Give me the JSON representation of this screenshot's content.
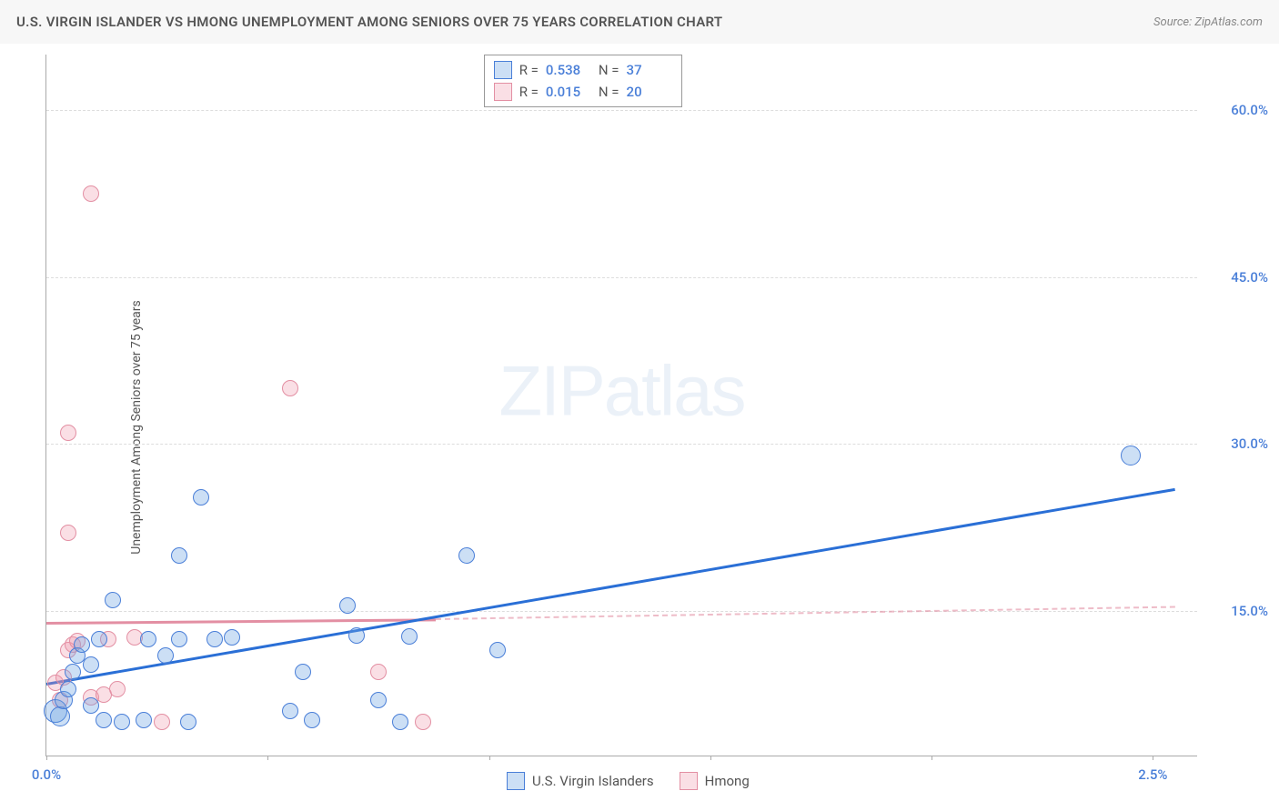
{
  "header": {
    "title": "U.S. VIRGIN ISLANDER VS HMONG UNEMPLOYMENT AMONG SENIORS OVER 75 YEARS CORRELATION CHART",
    "source": "Source: ZipAtlas.com"
  },
  "chart": {
    "type": "scatter",
    "ylabel": "Unemployment Among Seniors over 75 years",
    "watermark": "ZIPatlas",
    "xlim": [
      0.0,
      2.6
    ],
    "ylim": [
      2.0,
      65.0
    ],
    "yticks": [
      {
        "v": 15.0,
        "label": "15.0%"
      },
      {
        "v": 30.0,
        "label": "30.0%"
      },
      {
        "v": 45.0,
        "label": "45.0%"
      },
      {
        "v": 60.0,
        "label": "60.0%"
      }
    ],
    "xticks": [
      {
        "v": 0.0,
        "label": "0.0%"
      },
      {
        "v": 0.5,
        "label": ""
      },
      {
        "v": 1.0,
        "label": ""
      },
      {
        "v": 1.5,
        "label": ""
      },
      {
        "v": 2.0,
        "label": ""
      },
      {
        "v": 2.5,
        "label": "2.5%"
      }
    ],
    "colors": {
      "blue_fill": "rgba(109,162,225,0.35)",
      "blue_stroke": "#4a7fd8",
      "pink_fill": "rgba(240,150,170,0.30)",
      "pink_stroke": "#e38fa3",
      "trend_blue": "#2a6fd6",
      "trend_pink": "#e38fa3",
      "trend_pink_dash": "rgba(227,143,163,0.6)",
      "grid": "#dddddd",
      "axis": "#aaaaaa",
      "tick_text": "#4a7fd8",
      "bg": "#ffffff"
    },
    "bubble_radius": 9,
    "series_a": {
      "name": "U.S. Virgin Islanders",
      "R": "0.538",
      "N": "37",
      "trend": {
        "x1": 0.0,
        "y1": 8.5,
        "x2": 2.55,
        "y2": 26.0
      },
      "points": [
        {
          "x": 0.02,
          "y": 6.0,
          "r": 13
        },
        {
          "x": 0.03,
          "y": 5.5,
          "r": 11
        },
        {
          "x": 0.04,
          "y": 7.0,
          "r": 10
        },
        {
          "x": 0.05,
          "y": 8.0,
          "r": 9
        },
        {
          "x": 0.06,
          "y": 9.5,
          "r": 9
        },
        {
          "x": 0.07,
          "y": 11.0,
          "r": 9
        },
        {
          "x": 0.08,
          "y": 12.0,
          "r": 9
        },
        {
          "x": 0.1,
          "y": 10.2,
          "r": 9
        },
        {
          "x": 0.1,
          "y": 6.5,
          "r": 9
        },
        {
          "x": 0.12,
          "y": 12.5,
          "r": 9
        },
        {
          "x": 0.13,
          "y": 5.2,
          "r": 9
        },
        {
          "x": 0.15,
          "y": 16.0,
          "r": 9
        },
        {
          "x": 0.17,
          "y": 5.0,
          "r": 9
        },
        {
          "x": 0.22,
          "y": 5.2,
          "r": 9
        },
        {
          "x": 0.23,
          "y": 12.5,
          "r": 9
        },
        {
          "x": 0.27,
          "y": 11.0,
          "r": 9
        },
        {
          "x": 0.3,
          "y": 12.5,
          "r": 9
        },
        {
          "x": 0.3,
          "y": 20.0,
          "r": 9
        },
        {
          "x": 0.32,
          "y": 5.0,
          "r": 9
        },
        {
          "x": 0.35,
          "y": 25.2,
          "r": 9
        },
        {
          "x": 0.38,
          "y": 12.5,
          "r": 9
        },
        {
          "x": 0.42,
          "y": 12.6,
          "r": 9
        },
        {
          "x": 0.55,
          "y": 6.0,
          "r": 9
        },
        {
          "x": 0.58,
          "y": 9.5,
          "r": 9
        },
        {
          "x": 0.6,
          "y": 5.2,
          "r": 9
        },
        {
          "x": 0.68,
          "y": 15.5,
          "r": 9
        },
        {
          "x": 0.7,
          "y": 12.8,
          "r": 9
        },
        {
          "x": 0.75,
          "y": 7.0,
          "r": 9
        },
        {
          "x": 0.8,
          "y": 5.0,
          "r": 9
        },
        {
          "x": 0.82,
          "y": 12.7,
          "r": 9
        },
        {
          "x": 0.95,
          "y": 20.0,
          "r": 9
        },
        {
          "x": 1.02,
          "y": 11.5,
          "r": 9
        },
        {
          "x": 2.45,
          "y": 29.0,
          "r": 11
        }
      ]
    },
    "series_b": {
      "name": "Hmong",
      "R": "0.015",
      "N": "20",
      "trend_solid": {
        "x1": 0.0,
        "y1": 14.0,
        "x2": 0.88,
        "y2": 14.3
      },
      "trend_dash": {
        "x1": 0.88,
        "y1": 14.3,
        "x2": 2.55,
        "y2": 15.4
      },
      "points": [
        {
          "x": 0.02,
          "y": 8.5,
          "r": 9
        },
        {
          "x": 0.03,
          "y": 7.0,
          "r": 9
        },
        {
          "x": 0.04,
          "y": 9.0,
          "r": 9
        },
        {
          "x": 0.05,
          "y": 11.5,
          "r": 9
        },
        {
          "x": 0.06,
          "y": 12.0,
          "r": 9
        },
        {
          "x": 0.07,
          "y": 12.3,
          "r": 9
        },
        {
          "x": 0.05,
          "y": 22.0,
          "r": 9
        },
        {
          "x": 0.05,
          "y": 31.0,
          "r": 9
        },
        {
          "x": 0.1,
          "y": 52.5,
          "r": 9
        },
        {
          "x": 0.1,
          "y": 7.2,
          "r": 9
        },
        {
          "x": 0.13,
          "y": 7.5,
          "r": 9
        },
        {
          "x": 0.14,
          "y": 12.5,
          "r": 9
        },
        {
          "x": 0.16,
          "y": 8.0,
          "r": 9
        },
        {
          "x": 0.2,
          "y": 12.6,
          "r": 9
        },
        {
          "x": 0.26,
          "y": 5.0,
          "r": 9
        },
        {
          "x": 0.55,
          "y": 35.0,
          "r": 9
        },
        {
          "x": 0.75,
          "y": 9.5,
          "r": 9
        },
        {
          "x": 0.85,
          "y": 5.0,
          "r": 9
        }
      ]
    }
  }
}
